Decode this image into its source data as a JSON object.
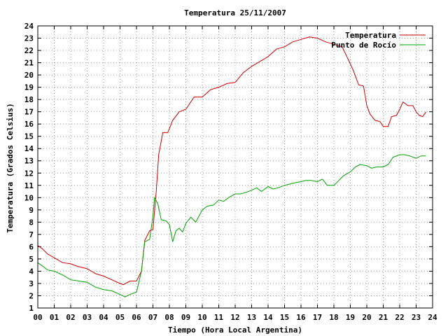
{
  "chart_data": {
    "type": "line",
    "title": "Temperatura 25/11/2007",
    "xlabel": "Tiempo (Hora Local Argentina)",
    "ylabel": "Temperatura (Grados Celsius)",
    "xlim": [
      0,
      24
    ],
    "ylim": [
      1,
      24
    ],
    "xticks": [
      "00",
      "01",
      "02",
      "03",
      "04",
      "05",
      "06",
      "07",
      "08",
      "09",
      "10",
      "11",
      "12",
      "13",
      "14",
      "15",
      "16",
      "17",
      "18",
      "19",
      "20",
      "21",
      "22",
      "23",
      "24"
    ],
    "yticks": [
      1,
      2,
      3,
      4,
      5,
      6,
      7,
      8,
      9,
      10,
      11,
      12,
      13,
      14,
      15,
      16,
      17,
      18,
      19,
      20,
      21,
      22,
      23,
      24
    ],
    "grid": true,
    "legend_position": "top-right",
    "series": [
      {
        "name": "Temperatura",
        "color": "#cc0000",
        "x": [
          0,
          0.3,
          0.6,
          1.0,
          1.5,
          2.0,
          2.4,
          3.0,
          3.5,
          4.0,
          4.5,
          5.0,
          5.2,
          5.6,
          6.0,
          6.3,
          6.5,
          6.8,
          7.0,
          7.2,
          7.35,
          7.6,
          7.9,
          8.2,
          8.6,
          9.0,
          9.5,
          10.0,
          10.5,
          11.0,
          11.5,
          12.0,
          12.5,
          13.0,
          13.5,
          14.0,
          14.5,
          15.0,
          15.5,
          16.0,
          16.5,
          17.0,
          17.5,
          18.0,
          18.5,
          19.0,
          19.2,
          19.5,
          19.8,
          20.0,
          20.2,
          20.5,
          20.8,
          21.0,
          21.3,
          21.5,
          21.8,
          22.0,
          22.2,
          22.5,
          22.8,
          23.0,
          23.2,
          23.4,
          23.6
        ],
        "y": [
          6.1,
          5.8,
          5.4,
          5.1,
          4.7,
          4.6,
          4.4,
          4.2,
          3.8,
          3.6,
          3.3,
          3.0,
          2.9,
          3.2,
          3.2,
          4.0,
          6.5,
          7.3,
          7.4,
          10.5,
          13.5,
          15.3,
          15.3,
          16.3,
          17.0,
          17.2,
          18.2,
          18.2,
          18.8,
          19.0,
          19.3,
          19.4,
          20.2,
          20.7,
          21.1,
          21.5,
          22.1,
          22.3,
          22.7,
          22.9,
          23.1,
          23.0,
          22.7,
          22.5,
          22.3,
          20.9,
          20.3,
          19.2,
          19.1,
          17.5,
          16.8,
          16.3,
          16.2,
          15.8,
          15.8,
          16.6,
          16.7,
          17.2,
          17.8,
          17.5,
          17.5,
          17.0,
          16.7,
          16.6,
          17.0
        ]
      },
      {
        "name": "Punto de Rocío",
        "color": "#00a000",
        "x": [
          0,
          0.3,
          0.6,
          1.0,
          1.5,
          2.0,
          2.5,
          3.0,
          3.5,
          4.0,
          4.5,
          5.0,
          5.3,
          5.6,
          6.0,
          6.3,
          6.5,
          6.8,
          7.0,
          7.1,
          7.3,
          7.5,
          7.8,
          8.0,
          8.2,
          8.4,
          8.6,
          8.8,
          9.0,
          9.3,
          9.6,
          10.0,
          10.3,
          10.7,
          11.0,
          11.3,
          11.6,
          12.0,
          12.3,
          12.6,
          13.0,
          13.3,
          13.6,
          14.0,
          14.3,
          14.6,
          15.0,
          15.3,
          15.6,
          16.0,
          16.3,
          16.6,
          17.0,
          17.3,
          17.6,
          18.0,
          18.3,
          18.6,
          19.0,
          19.3,
          19.6,
          20.0,
          20.3,
          20.6,
          21.0,
          21.3,
          21.6,
          22.0,
          22.3,
          22.6,
          23.0,
          23.3,
          23.6
        ],
        "y": [
          4.7,
          4.4,
          4.1,
          4.0,
          3.7,
          3.3,
          3.2,
          3.1,
          2.7,
          2.5,
          2.4,
          2.1,
          1.9,
          2.1,
          2.3,
          4.0,
          6.4,
          6.6,
          8.5,
          10.0,
          9.5,
          8.2,
          8.1,
          7.8,
          6.4,
          7.3,
          7.5,
          7.2,
          7.9,
          8.4,
          8.0,
          9.0,
          9.3,
          9.4,
          9.8,
          9.7,
          10.0,
          10.3,
          10.3,
          10.4,
          10.6,
          10.8,
          10.5,
          10.9,
          10.7,
          10.8,
          11.0,
          11.1,
          11.2,
          11.3,
          11.4,
          11.4,
          11.3,
          11.5,
          11.0,
          11.0,
          11.4,
          11.8,
          12.1,
          12.5,
          12.7,
          12.6,
          12.4,
          12.5,
          12.5,
          12.7,
          13.3,
          13.5,
          13.5,
          13.4,
          13.2,
          13.4,
          13.4
        ]
      }
    ]
  }
}
